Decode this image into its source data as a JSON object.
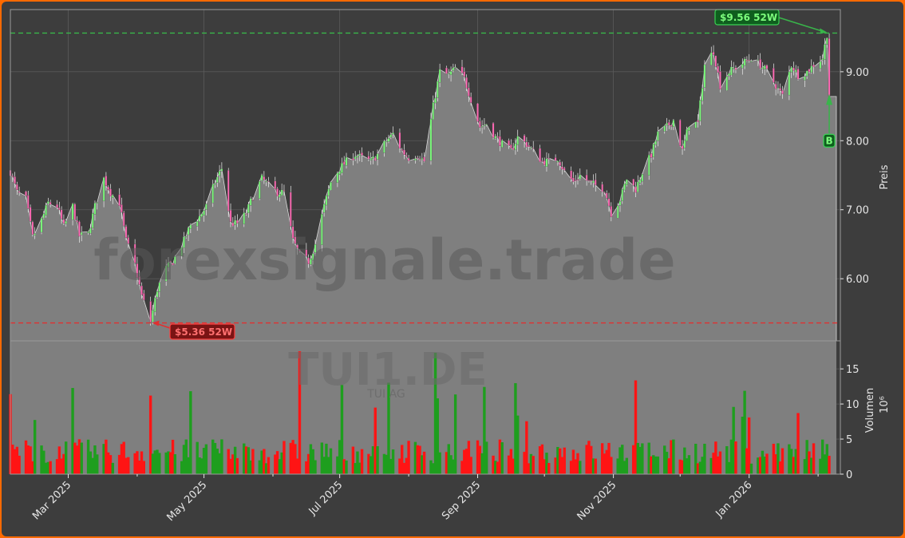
{
  "chart_data": {
    "type": "candlestick",
    "price": {
      "ylabel": "Preis",
      "ylim": [
        5.1,
        9.9
      ],
      "ticks": [
        "6.00",
        "7.00",
        "8.00",
        "9.00"
      ],
      "tick_values": [
        6,
        7,
        8,
        9
      ],
      "high_52w": 9.56,
      "low_52w": 5.36,
      "high_label": "$9.56 52W",
      "low_label": "$5.36 52W",
      "last_close": 8.64,
      "signal_label": "B",
      "signal_date": "2026-02-06",
      "signal_value": 8.0,
      "series": [
        [
          "2025-02-03",
          7.55
        ],
        [
          "2025-02-06",
          7.25
        ],
        [
          "2025-02-10",
          7.15
        ],
        [
          "2025-02-13",
          6.6
        ],
        [
          "2025-02-17",
          6.85
        ],
        [
          "2025-02-20",
          7.1
        ],
        [
          "2025-02-24",
          7.05
        ],
        [
          "2025-02-27",
          6.75
        ],
        [
          "2025-03-03",
          7.05
        ],
        [
          "2025-03-06",
          6.62
        ],
        [
          "2025-03-10",
          6.65
        ],
        [
          "2025-03-13",
          7.05
        ],
        [
          "2025-03-17",
          7.45
        ],
        [
          "2025-03-20",
          7.25
        ],
        [
          "2025-03-24",
          7.1
        ],
        [
          "2025-03-27",
          6.55
        ],
        [
          "2025-03-31",
          6.2
        ],
        [
          "2025-04-03",
          5.75
        ],
        [
          "2025-04-07",
          5.38
        ],
        [
          "2025-04-10",
          5.85
        ],
        [
          "2025-04-14",
          6.15
        ],
        [
          "2025-04-17",
          6.25
        ],
        [
          "2025-04-22",
          6.55
        ],
        [
          "2025-04-25",
          6.78
        ],
        [
          "2025-04-29",
          6.9
        ],
        [
          "2025-05-02",
          7.05
        ],
        [
          "2025-05-06",
          7.4
        ],
        [
          "2025-05-09",
          7.6
        ],
        [
          "2025-05-13",
          6.8
        ],
        [
          "2025-05-16",
          6.8
        ],
        [
          "2025-05-20",
          6.95
        ],
        [
          "2025-05-23",
          7.2
        ],
        [
          "2025-05-27",
          7.45
        ],
        [
          "2025-05-30",
          7.35
        ],
        [
          "2025-06-03",
          7.25
        ],
        [
          "2025-06-06",
          7.25
        ],
        [
          "2025-06-10",
          6.55
        ],
        [
          "2025-06-13",
          6.35
        ],
        [
          "2025-06-17",
          6.25
        ],
        [
          "2025-06-20",
          6.5
        ],
        [
          "2025-06-24",
          7.05
        ],
        [
          "2025-06-27",
          7.4
        ],
        [
          "2025-07-01",
          7.6
        ],
        [
          "2025-07-04",
          7.7
        ],
        [
          "2025-07-08",
          7.8
        ],
        [
          "2025-07-11",
          7.75
        ],
        [
          "2025-07-15",
          7.7
        ],
        [
          "2025-07-18",
          7.8
        ],
        [
          "2025-07-22",
          8.0
        ],
        [
          "2025-07-25",
          8.1
        ],
        [
          "2025-07-29",
          7.85
        ],
        [
          "2025-08-01",
          7.75
        ],
        [
          "2025-08-05",
          7.8
        ],
        [
          "2025-08-08",
          7.7
        ],
        [
          "2025-08-12",
          8.5
        ],
        [
          "2025-08-15",
          9.0
        ],
        [
          "2025-08-19",
          8.95
        ],
        [
          "2025-08-22",
          9.05
        ],
        [
          "2025-08-26",
          8.9
        ],
        [
          "2025-08-29",
          8.6
        ],
        [
          "2025-09-02",
          8.2
        ],
        [
          "2025-09-05",
          8.25
        ],
        [
          "2025-09-09",
          8.05
        ],
        [
          "2025-09-12",
          7.95
        ],
        [
          "2025-09-16",
          7.85
        ],
        [
          "2025-09-19",
          8.05
        ],
        [
          "2025-09-23",
          7.95
        ],
        [
          "2025-09-26",
          7.85
        ],
        [
          "2025-09-30",
          7.7
        ],
        [
          "2025-10-03",
          7.7
        ],
        [
          "2025-10-07",
          7.75
        ],
        [
          "2025-10-10",
          7.55
        ],
        [
          "2025-10-14",
          7.4
        ],
        [
          "2025-10-17",
          7.5
        ],
        [
          "2025-10-21",
          7.4
        ],
        [
          "2025-10-24",
          7.35
        ],
        [
          "2025-10-28",
          7.3
        ],
        [
          "2025-10-31",
          6.95
        ],
        [
          "2025-11-04",
          7.15
        ],
        [
          "2025-11-07",
          7.45
        ],
        [
          "2025-11-11",
          7.3
        ],
        [
          "2025-11-14",
          7.55
        ],
        [
          "2025-11-18",
          7.8
        ],
        [
          "2025-11-21",
          8.1
        ],
        [
          "2025-11-25",
          8.2
        ],
        [
          "2025-11-28",
          8.3
        ],
        [
          "2025-12-02",
          7.85
        ],
        [
          "2025-12-05",
          8.25
        ],
        [
          "2025-12-09",
          8.25
        ],
        [
          "2025-12-12",
          9.1
        ],
        [
          "2025-12-16",
          9.3
        ],
        [
          "2025-12-19",
          8.8
        ],
        [
          "2025-12-23",
          9.0
        ],
        [
          "2026-01-02",
          9.2
        ],
        [
          "2026-01-06",
          9.1
        ],
        [
          "2026-01-09",
          9.0
        ],
        [
          "2026-01-13",
          8.8
        ],
        [
          "2026-01-16",
          8.65
        ],
        [
          "2026-01-20",
          9.1
        ],
        [
          "2026-01-23",
          8.95
        ],
        [
          "2026-01-27",
          9.0
        ],
        [
          "2026-01-30",
          9.1
        ],
        [
          "2026-02-03",
          9.2
        ],
        [
          "2026-02-05",
          9.55
        ],
        [
          "2026-02-06",
          8.64
        ]
      ]
    },
    "volume": {
      "ylabel": "Volumen",
      "unit": "10⁶",
      "ylim": [
        0,
        19
      ],
      "ticks": [
        "0",
        "5",
        "10",
        "15"
      ],
      "tick_values": [
        0,
        5,
        10,
        15
      ],
      "colors": {
        "up": "#1e9e1e",
        "down": "#ff1414"
      }
    },
    "x_axis": {
      "ticks": [
        "Mar 2025",
        "May 2025",
        "Jul 2025",
        "Sep 2025",
        "Nov 2025",
        "Jan 2026"
      ],
      "tick_dates": [
        "2025-03-01",
        "2025-05-01",
        "2025-07-01",
        "2025-09-01",
        "2025-11-01",
        "2026-01-01"
      ],
      "xlim": [
        "2025-02-03",
        "2026-02-11"
      ]
    },
    "grid": true,
    "watermark": "forexsignale.trade",
    "ticker": "TUI1.DE",
    "company": "TUI AG",
    "colors": {
      "background": "#3d3d3d",
      "border": "#ff6a00",
      "area": "#7f7f7f",
      "high_line": "#39b54a",
      "low_line": "#e03030",
      "candle_up": "#7cfc7c",
      "candle_down": "#ff69b4"
    }
  }
}
